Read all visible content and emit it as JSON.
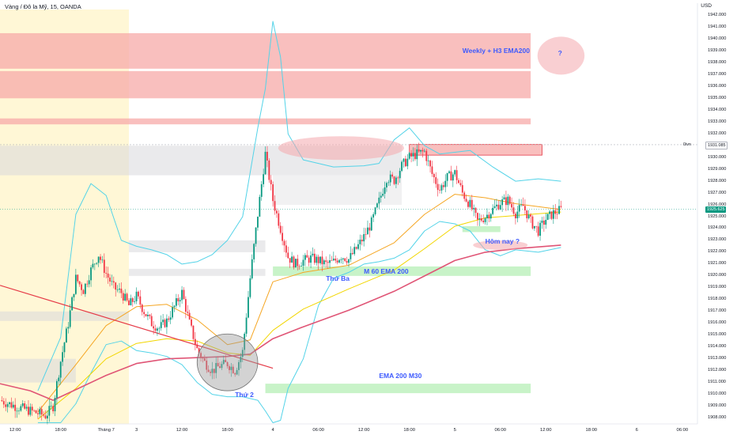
{
  "header": {
    "title": "Vàng / Đô la Mỹ, 15, OANDA",
    "currency": "USD"
  },
  "chart_data": {
    "type": "candlestick",
    "title": "Vàng / Đô la Mỹ, 15, OANDA",
    "ylim": [
      1907.5,
      1942.5
    ],
    "price_ticks": [
      1908,
      1909,
      1910,
      1911,
      1912,
      1913,
      1914,
      1915,
      1916,
      1917,
      1918,
      1919,
      1920,
      1921,
      1922,
      1923,
      1924,
      1925,
      1926,
      1927,
      1928,
      1929,
      1930,
      1931,
      1932,
      1933,
      1934,
      1935,
      1936,
      1937,
      1938,
      1939,
      1940,
      1941,
      1942
    ],
    "time_labels": [
      {
        "label": "12:00",
        "t": 2
      },
      {
        "label": "18:00",
        "t": 8
      },
      {
        "label": "Tháng 7",
        "t": 14
      },
      {
        "label": "3",
        "t": 18
      },
      {
        "label": "12:00",
        "t": 24
      },
      {
        "label": "18:00",
        "t": 30
      },
      {
        "label": "4",
        "t": 36
      },
      {
        "label": "06:00",
        "t": 42
      },
      {
        "label": "12:00",
        "t": 48
      },
      {
        "label": "18:00",
        "t": 54
      },
      {
        "label": "5",
        "t": 60
      },
      {
        "label": "06:00",
        "t": 66
      },
      {
        "label": "12:00",
        "t": 72
      },
      {
        "label": "18:00",
        "t": 78
      },
      {
        "label": "6",
        "t": 84
      },
      {
        "label": "06:00",
        "t": 90
      }
    ],
    "last_price": "1925.625",
    "marked_level": {
      "price": 1931.085,
      "label": "1931.085",
      "tag": "0ivn"
    },
    "series_close": [
      [
        0,
        1909.5
      ],
      [
        2,
        1909.0
      ],
      [
        4,
        1908.6
      ],
      [
        6,
        1908.2
      ],
      [
        7,
        1909.0
      ],
      [
        8,
        1912.8
      ],
      [
        9,
        1916.0
      ],
      [
        10,
        1919.8
      ],
      [
        11,
        1918.8
      ],
      [
        12,
        1920.5
      ],
      [
        13,
        1921.8
      ],
      [
        14,
        1920.2
      ],
      [
        15,
        1919.0
      ],
      [
        16,
        1918.6
      ],
      [
        17,
        1917.5
      ],
      [
        18,
        1918.3
      ],
      [
        19,
        1917.0
      ],
      [
        20,
        1916.0
      ],
      [
        21,
        1915.6
      ],
      [
        22,
        1916.2
      ],
      [
        23,
        1917.4
      ],
      [
        24,
        1918.6
      ],
      [
        25,
        1916.0
      ],
      [
        26,
        1913.8
      ],
      [
        27,
        1912.7
      ],
      [
        28,
        1912.0
      ],
      [
        29,
        1912.4
      ],
      [
        30,
        1912.6
      ],
      [
        31,
        1912.0
      ],
      [
        32,
        1913.6
      ],
      [
        33,
        1919.8
      ],
      [
        34,
        1925.2
      ],
      [
        35,
        1930.3
      ],
      [
        36,
        1926.4
      ],
      [
        37,
        1924.0
      ],
      [
        38,
        1921.6
      ],
      [
        39,
        1921.0
      ],
      [
        40,
        1921.3
      ],
      [
        41,
        1921.5
      ],
      [
        42,
        1921.3
      ],
      [
        43,
        1921.0
      ],
      [
        44,
        1921.2
      ],
      [
        45,
        1921.7
      ],
      [
        46,
        1921.4
      ],
      [
        47,
        1922.3
      ],
      [
        48,
        1923.3
      ],
      [
        49,
        1924.5
      ],
      [
        50,
        1926.3
      ],
      [
        51,
        1928.3
      ],
      [
        52,
        1928.1
      ],
      [
        53,
        1929.3
      ],
      [
        54,
        1930.0
      ],
      [
        55,
        1930.3
      ],
      [
        56,
        1930.5
      ],
      [
        57,
        1928.6
      ],
      [
        58,
        1927.3
      ],
      [
        59,
        1928.3
      ],
      [
        60,
        1928.7
      ],
      [
        61,
        1927.0
      ],
      [
        62,
        1926.0
      ],
      [
        63,
        1924.6
      ],
      [
        64,
        1925.0
      ],
      [
        65,
        1925.6
      ],
      [
        66,
        1926.2
      ],
      [
        67,
        1926.4
      ],
      [
        68,
        1925.3
      ],
      [
        69,
        1925.9
      ],
      [
        70,
        1924.6
      ],
      [
        71,
        1923.8
      ],
      [
        72,
        1924.8
      ],
      [
        73,
        1925.3
      ],
      [
        74,
        1925.6
      ]
    ],
    "ema_series": [
      {
        "id": "ema-orange",
        "color": "#f5a623",
        "points": [
          [
            5,
            1908.5
          ],
          [
            10,
            1912.5
          ],
          [
            14,
            1915.8
          ],
          [
            18,
            1917.4
          ],
          [
            22,
            1917.6
          ],
          [
            26,
            1916.3
          ],
          [
            30,
            1914.2
          ],
          [
            33,
            1914.6
          ],
          [
            36,
            1919.5
          ],
          [
            40,
            1920.3
          ],
          [
            46,
            1920.9
          ],
          [
            52,
            1922.8
          ],
          [
            56,
            1925.2
          ],
          [
            60,
            1926.9
          ],
          [
            64,
            1926.6
          ],
          [
            68,
            1926.1
          ],
          [
            74,
            1925.6
          ]
        ]
      },
      {
        "id": "ema-yellow",
        "color": "#f2d600",
        "points": [
          [
            5,
            1907.9
          ],
          [
            10,
            1910.5
          ],
          [
            14,
            1913.0
          ],
          [
            18,
            1914.3
          ],
          [
            22,
            1914.7
          ],
          [
            26,
            1914.5
          ],
          [
            30,
            1913.5
          ],
          [
            33,
            1913.3
          ],
          [
            36,
            1915.4
          ],
          [
            40,
            1917.2
          ],
          [
            46,
            1918.9
          ],
          [
            52,
            1920.5
          ],
          [
            56,
            1922.3
          ],
          [
            60,
            1924.2
          ],
          [
            64,
            1924.9
          ],
          [
            68,
            1925.1
          ],
          [
            74,
            1925.4
          ]
        ]
      },
      {
        "id": "ema-200",
        "color": "#e05576",
        "points": [
          [
            0,
            1910.9
          ],
          [
            4,
            1910.3
          ],
          [
            7,
            1909.5
          ],
          [
            10,
            1910.4
          ],
          [
            14,
            1911.6
          ],
          [
            18,
            1912.6
          ],
          [
            22,
            1913.0
          ],
          [
            26,
            1913.1
          ],
          [
            30,
            1913.2
          ],
          [
            33,
            1913.4
          ],
          [
            36,
            1914.7
          ],
          [
            40,
            1915.7
          ],
          [
            46,
            1917.1
          ],
          [
            52,
            1918.7
          ],
          [
            56,
            1920.0
          ],
          [
            60,
            1921.3
          ],
          [
            64,
            1922.0
          ],
          [
            68,
            1922.3
          ],
          [
            74,
            1922.6
          ]
        ]
      }
    ],
    "bollinger_series": [
      {
        "id": "bb-upper",
        "color": "#53d3e8",
        "points": [
          [
            5,
            1910.3
          ],
          [
            8,
            1914.8
          ],
          [
            10,
            1925.2
          ],
          [
            12,
            1927.8
          ],
          [
            14,
            1926.8
          ],
          [
            16,
            1923.0
          ],
          [
            18,
            1922.5
          ],
          [
            20,
            1922.2
          ],
          [
            22,
            1921.8
          ],
          [
            24,
            1921.0
          ],
          [
            26,
            1921.2
          ],
          [
            28,
            1921.8
          ],
          [
            30,
            1923.0
          ],
          [
            32,
            1925.0
          ],
          [
            34,
            1932.5
          ],
          [
            35,
            1935.8
          ],
          [
            36,
            1941.5
          ],
          [
            37,
            1938.5
          ],
          [
            38,
            1932.0
          ],
          [
            40,
            1929.8
          ],
          [
            44,
            1929.2
          ],
          [
            48,
            1929.3
          ],
          [
            50,
            1929.5
          ],
          [
            52,
            1931.5
          ],
          [
            54,
            1932.5
          ],
          [
            56,
            1931.0
          ],
          [
            58,
            1930.3
          ],
          [
            62,
            1930.6
          ],
          [
            65,
            1929.2
          ],
          [
            68,
            1928.0
          ],
          [
            71,
            1928.2
          ],
          [
            74,
            1928.0
          ]
        ]
      },
      {
        "id": "bb-lower",
        "color": "#53d3e8",
        "points": [
          [
            5,
            1907.6
          ],
          [
            8,
            1907.6
          ],
          [
            10,
            1909.2
          ],
          [
            12,
            1911.8
          ],
          [
            14,
            1914.2
          ],
          [
            16,
            1914.5
          ],
          [
            18,
            1913.7
          ],
          [
            20,
            1913.5
          ],
          [
            22,
            1913.2
          ],
          [
            24,
            1912.5
          ],
          [
            26,
            1911.0
          ],
          [
            28,
            1910.0
          ],
          [
            30,
            1909.8
          ],
          [
            32,
            1909.8
          ],
          [
            34,
            1909.5
          ],
          [
            35,
            1908.6
          ],
          [
            36,
            1907.6
          ],
          [
            37,
            1907.8
          ],
          [
            38,
            1910.5
          ],
          [
            40,
            1913.0
          ],
          [
            42,
            1917.5
          ],
          [
            44,
            1919.8
          ],
          [
            46,
            1920.3
          ],
          [
            48,
            1921.0
          ],
          [
            50,
            1921.2
          ],
          [
            52,
            1921.5
          ],
          [
            54,
            1922.2
          ],
          [
            56,
            1923.8
          ],
          [
            58,
            1924.6
          ],
          [
            60,
            1924.4
          ],
          [
            62,
            1923.8
          ],
          [
            64,
            1922.2
          ],
          [
            66,
            1921.7
          ],
          [
            68,
            1922.2
          ],
          [
            71,
            1922.0
          ],
          [
            74,
            1922.4
          ]
        ]
      }
    ],
    "trendline": {
      "color": "#e53946",
      "points": [
        [
          0,
          1919.2
        ],
        [
          36,
          1912.2
        ]
      ]
    },
    "zones": [
      {
        "id": "zone-weekly-h3",
        "kind": "resistance",
        "t0": 0,
        "t1": 70,
        "top": 1940.5,
        "bottom": 1937.5,
        "color": "#f7a9a8"
      },
      {
        "id": "zone-resistance-2",
        "kind": "resistance",
        "t0": 0,
        "t1": 70,
        "top": 1937.3,
        "bottom": 1935.0,
        "color": "#f7a9a8"
      },
      {
        "id": "zone-resistance-3",
        "kind": "resistance",
        "t0": 0,
        "t1": 70,
        "top": 1933.3,
        "bottom": 1932.8,
        "color": "#f7a9a8"
      },
      {
        "id": "zone-box-high",
        "kind": "resistance",
        "t0": 54,
        "t1": 71.5,
        "top": 1931.1,
        "bottom": 1930.2,
        "color": "#f7a9a8"
      },
      {
        "id": "zone-grey-1",
        "kind": "neutral",
        "t0": 0,
        "t1": 53,
        "top": 1931.0,
        "bottom": 1928.5,
        "color": "#d9d9dc"
      },
      {
        "id": "zone-grey-2",
        "kind": "neutral",
        "t0": 36,
        "t1": 53,
        "top": 1928.5,
        "bottom": 1926.0,
        "color": "#e6e6e8"
      },
      {
        "id": "zone-grey-3",
        "kind": "neutral",
        "t0": 17,
        "t1": 35,
        "top": 1923.0,
        "bottom": 1922.0,
        "color": "#d9d9dc"
      },
      {
        "id": "zone-grey-4",
        "kind": "neutral",
        "t0": 17,
        "t1": 35,
        "top": 1920.6,
        "bottom": 1920.0,
        "color": "#d9d9dc"
      },
      {
        "id": "zone-grey-5",
        "kind": "neutral",
        "t0": 0,
        "t1": 17,
        "top": 1917.0,
        "bottom": 1916.2,
        "color": "#d9d9dc"
      },
      {
        "id": "zone-grey-6",
        "kind": "neutral",
        "t0": 0,
        "t1": 10,
        "top": 1913.0,
        "bottom": 1911.0,
        "color": "#d9d9dc"
      },
      {
        "id": "zone-m60-ema200",
        "kind": "support",
        "t0": 36,
        "t1": 70,
        "top": 1920.8,
        "bottom": 1920.0,
        "color": "#b6efb6"
      },
      {
        "id": "zone-ema200-m30",
        "kind": "support",
        "t0": 35,
        "t1": 70,
        "top": 1910.9,
        "bottom": 1910.1,
        "color": "#b6efb6"
      },
      {
        "id": "zone-small-support",
        "kind": "support",
        "t0": 61,
        "t1": 66,
        "top": 1924.2,
        "bottom": 1923.7,
        "color": "#b6efb6"
      }
    ],
    "session_band": {
      "t0": 0,
      "t1": 17,
      "color": "#fff7d6"
    },
    "ellipses": [
      {
        "id": "circle-thu-2",
        "cx": 30,
        "cy": 1912.7,
        "rx": 4.0,
        "ry": 2.4,
        "color": "#9e9e9e"
      },
      {
        "id": "ellipse-top",
        "cx": 45,
        "cy": 1930.8,
        "rx": 8.3,
        "ry": 1.0,
        "color": "#f4a7ad"
      },
      {
        "id": "ellipse-question",
        "cx": 74,
        "cy": 1938.6,
        "rx": 3.1,
        "ry": 1.6,
        "color": "#f4a7ad"
      },
      {
        "id": "ellipse-hom-nay",
        "cx": 66,
        "cy": 1922.6,
        "rx": 3.6,
        "ry": 0.4,
        "color": "#f4a7ad"
      }
    ],
    "annotations": [
      {
        "id": "label-weekly-h3",
        "text": "Weekly + H3 EMA200",
        "t": 61,
        "p": 1939.0
      },
      {
        "id": "label-question",
        "text": "?",
        "t": 73.6,
        "p": 1938.8
      },
      {
        "id": "label-m60-ema200",
        "text": "M 60 EMA 200",
        "t": 48,
        "p": 1920.4
      },
      {
        "id": "label-thu-ba",
        "text": "Thứ Ba",
        "t": 43,
        "p": 1919.8
      },
      {
        "id": "label-hom-nay",
        "text": "Hôm nay ?",
        "t": 64,
        "p": 1922.9
      },
      {
        "id": "label-ema200-m30",
        "text": "EMA 200 M30",
        "t": 50,
        "p": 1911.6
      },
      {
        "id": "label-thu-2",
        "text": "Thứ 2",
        "t": 31,
        "p": 1910.0
      }
    ]
  }
}
